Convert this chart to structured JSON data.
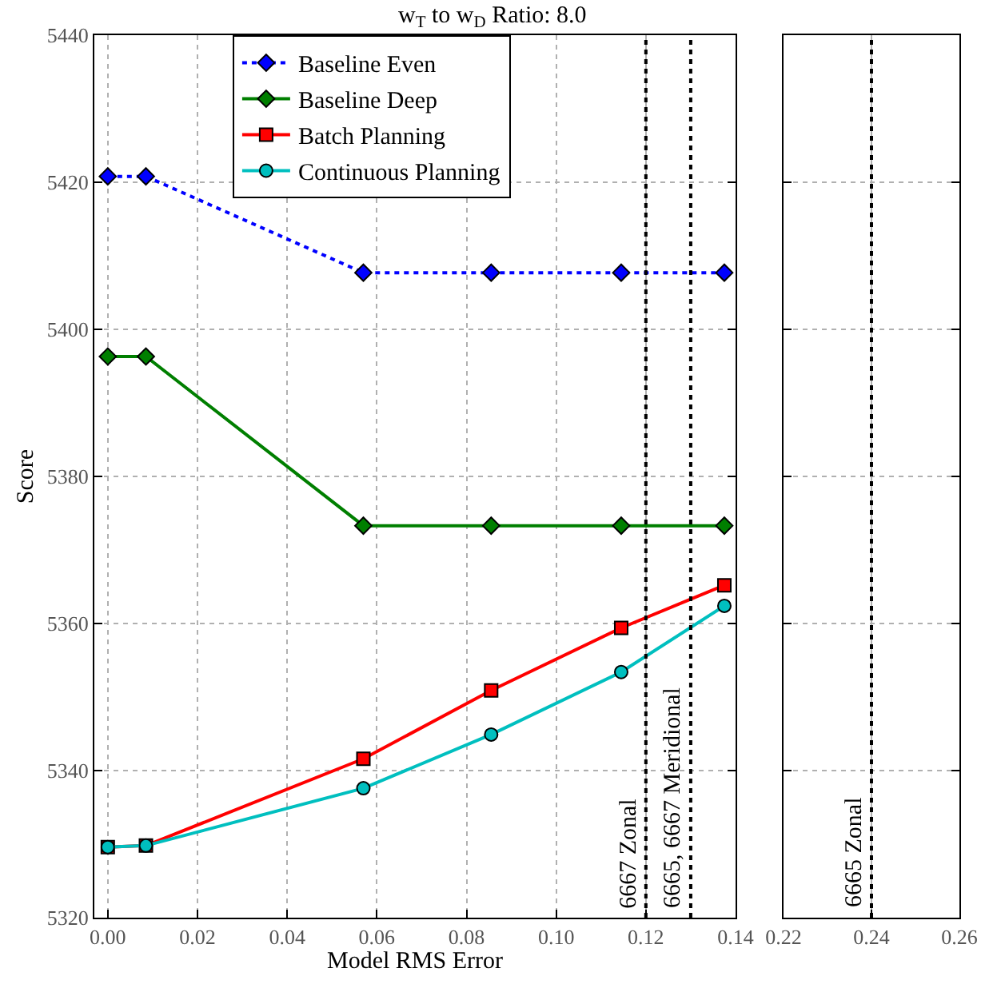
{
  "chart_data": [
    {
      "type": "line",
      "title": "w$_{T}$ to w$_{D}$ Ratio: 8.0",
      "xlabel": "Model RMS Error",
      "ylabel": "Score",
      "x": [
        0.0,
        0.0085,
        0.057,
        0.0855,
        0.1145,
        0.1375
      ],
      "series": [
        {
          "name": "Baseline Even",
          "color": "#0000ff",
          "marker": "diamond",
          "line_style": "dotted",
          "values": [
            5420.8,
            5420.8,
            5407.7,
            5407.7,
            5407.7,
            5407.7
          ]
        },
        {
          "name": "Baseline Deep",
          "color": "#007f00",
          "marker": "diamond",
          "line_style": "solid",
          "values": [
            5396.3,
            5396.3,
            5373.3,
            5373.3,
            5373.3,
            5373.3
          ]
        },
        {
          "name": "Batch Planning",
          "color": "#ff0000",
          "marker": "square",
          "line_style": "solid",
          "values": [
            5329.6,
            5329.8,
            5341.6,
            5350.9,
            5359.4,
            5365.2
          ]
        },
        {
          "name": "Continuous Planning",
          "color": "#00bfbf",
          "marker": "circle",
          "line_style": "solid",
          "values": [
            5329.6,
            5329.8,
            5337.6,
            5344.9,
            5353.4,
            5362.4
          ]
        }
      ],
      "xlim": [
        -0.003,
        0.14
      ],
      "xticks": [
        {
          "value": 0.0,
          "label": "0.00"
        },
        0.02,
        0.04,
        0.06,
        0.08,
        {
          "value": 0.1,
          "label": "0.10"
        },
        0.12,
        0.14
      ],
      "ylim": [
        5320,
        5440
      ],
      "yticks": [
        5320,
        5340,
        5360,
        5380,
        5400,
        5420,
        5440
      ],
      "ref_lines": [
        {
          "axis": "x",
          "value": 0.12,
          "label": "6667 Zonal",
          "color": "#000000",
          "line_style": "dotted"
        },
        {
          "axis": "x",
          "value": 0.13,
          "label": "6665, 6667 Meridional",
          "color": "#000000",
          "line_style": "dotted"
        }
      ],
      "grid": true,
      "legend": "top"
    },
    {
      "type": "line",
      "xlim": [
        0.22,
        0.26
      ],
      "xticks": [
        0.22,
        0.24,
        0.26
      ],
      "ylim": [
        5320,
        5440
      ],
      "yticks": [
        5320,
        5340,
        5360,
        5380,
        5400,
        5420,
        5440
      ],
      "ref_lines": [
        {
          "axis": "x",
          "value": 0.24,
          "label": "6665 Zonal",
          "color": "#000000",
          "line_style": "dotted"
        }
      ],
      "grid": true,
      "tick_labels": "x"
    }
  ]
}
